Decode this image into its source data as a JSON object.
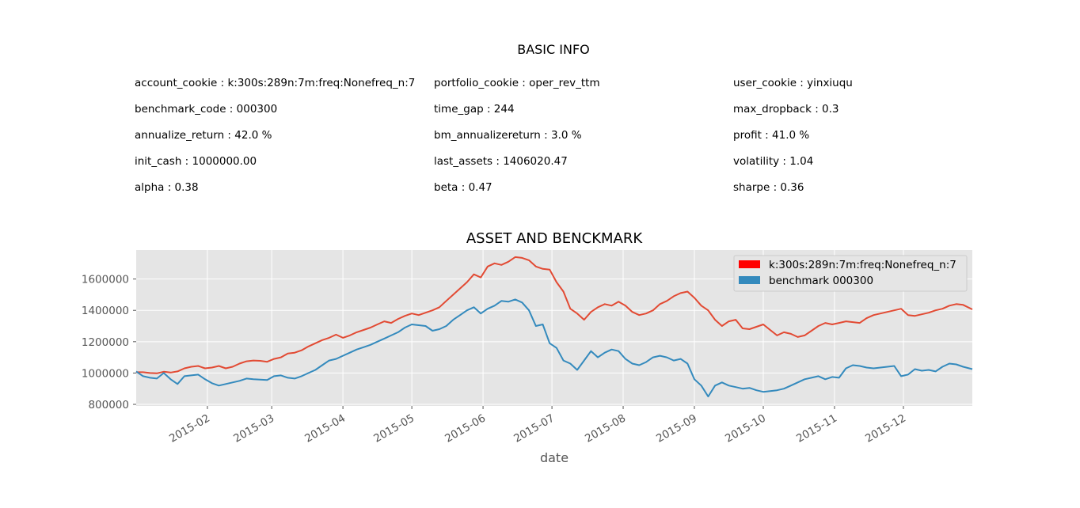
{
  "info": {
    "title": "BASIC INFO",
    "columns": [
      [
        {
          "key": "account_cookie",
          "value": "k:300s:289n:7m:freq:Nonefreq_n:7"
        },
        {
          "key": "benchmark_code",
          "value": "000300"
        },
        {
          "key": "annualize_return",
          "value": "42.0 %"
        },
        {
          "key": "init_cash",
          "value": "1000000.00"
        },
        {
          "key": "alpha",
          "value": "0.38"
        }
      ],
      [
        {
          "key": "portfolio_cookie",
          "value": "oper_rev_ttm"
        },
        {
          "key": "time_gap",
          "value": "244"
        },
        {
          "key": "bm_annualizereturn",
          "value": "3.0 %"
        },
        {
          "key": "last_assets",
          "value": "1406020.47"
        },
        {
          "key": "beta",
          "value": "0.47"
        }
      ],
      [
        {
          "key": "user_cookie",
          "value": "yinxiuqu"
        },
        {
          "key": "max_dropback",
          "value": "0.3"
        },
        {
          "key": "profit",
          "value": "41.0 %"
        },
        {
          "key": "volatility",
          "value": "1.04"
        },
        {
          "key": "sharpe",
          "value": "0.36"
        }
      ]
    ]
  },
  "colors": {
    "strategy": "#E24A33",
    "benchmark": "#348ABD",
    "legend_strategy_patch": "#FF0000",
    "plot_bg": "#E5E5E5",
    "grid": "#FFFFFF"
  },
  "chart_data": {
    "type": "line",
    "title": "ASSET AND BENCKMARK",
    "xlabel": "date",
    "ylabel": "",
    "xlim_day": [
      0,
      364
    ],
    "ylim": [
      790000,
      1785000
    ],
    "x_ticks": [
      {
        "label": "2015-02",
        "day": 31
      },
      {
        "label": "2015-03",
        "day": 59
      },
      {
        "label": "2015-04",
        "day": 90
      },
      {
        "label": "2015-05",
        "day": 120
      },
      {
        "label": "2015-06",
        "day": 151
      },
      {
        "label": "2015-07",
        "day": 181
      },
      {
        "label": "2015-08",
        "day": 212
      },
      {
        "label": "2015-09",
        "day": 243
      },
      {
        "label": "2015-10",
        "day": 273
      },
      {
        "label": "2015-11",
        "day": 304
      },
      {
        "label": "2015-12",
        "day": 334
      }
    ],
    "y_ticks": [
      {
        "label": "800000",
        "value": 800000
      },
      {
        "label": "1000000",
        "value": 1000000
      },
      {
        "label": "1200000",
        "value": 1200000
      },
      {
        "label": "1400000",
        "value": 1400000
      },
      {
        "label": "1600000",
        "value": 1600000
      }
    ],
    "legend_position": "top-right",
    "series": [
      {
        "name": "k:300s:289n:7m:freq:Nonefreq_n:7",
        "color": "#E24A33",
        "points": [
          [
            0,
            1005000
          ],
          [
            3,
            1005000
          ],
          [
            6,
            1000000
          ],
          [
            9,
            998000
          ],
          [
            12,
            1008000
          ],
          [
            15,
            1003000
          ],
          [
            18,
            1010000
          ],
          [
            21,
            1030000
          ],
          [
            24,
            1040000
          ],
          [
            27,
            1045000
          ],
          [
            30,
            1030000
          ],
          [
            33,
            1035000
          ],
          [
            36,
            1045000
          ],
          [
            39,
            1030000
          ],
          [
            42,
            1040000
          ],
          [
            45,
            1060000
          ],
          [
            48,
            1075000
          ],
          [
            51,
            1080000
          ],
          [
            54,
            1078000
          ],
          [
            57,
            1072000
          ],
          [
            60,
            1090000
          ],
          [
            63,
            1100000
          ],
          [
            66,
            1125000
          ],
          [
            69,
            1130000
          ],
          [
            72,
            1145000
          ],
          [
            75,
            1170000
          ],
          [
            78,
            1190000
          ],
          [
            81,
            1210000
          ],
          [
            84,
            1225000
          ],
          [
            87,
            1245000
          ],
          [
            90,
            1225000
          ],
          [
            93,
            1240000
          ],
          [
            96,
            1260000
          ],
          [
            99,
            1275000
          ],
          [
            102,
            1290000
          ],
          [
            105,
            1310000
          ],
          [
            108,
            1330000
          ],
          [
            111,
            1320000
          ],
          [
            114,
            1345000
          ],
          [
            117,
            1365000
          ],
          [
            120,
            1380000
          ],
          [
            123,
            1370000
          ],
          [
            126,
            1385000
          ],
          [
            129,
            1400000
          ],
          [
            132,
            1420000
          ],
          [
            135,
            1460000
          ],
          [
            138,
            1500000
          ],
          [
            141,
            1540000
          ],
          [
            144,
            1580000
          ],
          [
            147,
            1630000
          ],
          [
            150,
            1610000
          ],
          [
            153,
            1680000
          ],
          [
            156,
            1700000
          ],
          [
            159,
            1690000
          ],
          [
            162,
            1710000
          ],
          [
            165,
            1740000
          ],
          [
            168,
            1735000
          ],
          [
            171,
            1720000
          ],
          [
            174,
            1680000
          ],
          [
            177,
            1665000
          ],
          [
            180,
            1660000
          ],
          [
            183,
            1580000
          ],
          [
            186,
            1520000
          ],
          [
            189,
            1410000
          ],
          [
            192,
            1380000
          ],
          [
            195,
            1340000
          ],
          [
            198,
            1390000
          ],
          [
            201,
            1420000
          ],
          [
            204,
            1440000
          ],
          [
            207,
            1430000
          ],
          [
            210,
            1455000
          ],
          [
            213,
            1430000
          ],
          [
            216,
            1390000
          ],
          [
            219,
            1370000
          ],
          [
            222,
            1380000
          ],
          [
            225,
            1400000
          ],
          [
            228,
            1440000
          ],
          [
            231,
            1460000
          ],
          [
            234,
            1490000
          ],
          [
            237,
            1510000
          ],
          [
            240,
            1520000
          ],
          [
            243,
            1480000
          ],
          [
            246,
            1430000
          ],
          [
            249,
            1400000
          ],
          [
            252,
            1340000
          ],
          [
            255,
            1300000
          ],
          [
            258,
            1330000
          ],
          [
            261,
            1340000
          ],
          [
            264,
            1285000
          ],
          [
            267,
            1280000
          ],
          [
            270,
            1295000
          ],
          [
            273,
            1310000
          ],
          [
            276,
            1275000
          ],
          [
            279,
            1240000
          ],
          [
            282,
            1260000
          ],
          [
            285,
            1250000
          ],
          [
            288,
            1230000
          ],
          [
            291,
            1240000
          ],
          [
            294,
            1270000
          ],
          [
            297,
            1300000
          ],
          [
            300,
            1320000
          ],
          [
            303,
            1310000
          ],
          [
            306,
            1320000
          ],
          [
            309,
            1330000
          ],
          [
            312,
            1325000
          ],
          [
            315,
            1320000
          ],
          [
            318,
            1350000
          ],
          [
            321,
            1370000
          ],
          [
            324,
            1380000
          ],
          [
            327,
            1390000
          ],
          [
            330,
            1400000
          ],
          [
            333,
            1410000
          ],
          [
            336,
            1370000
          ],
          [
            339,
            1365000
          ],
          [
            342,
            1375000
          ],
          [
            345,
            1385000
          ],
          [
            348,
            1400000
          ],
          [
            351,
            1410000
          ],
          [
            354,
            1430000
          ],
          [
            357,
            1440000
          ],
          [
            360,
            1435000
          ],
          [
            364,
            1406000
          ]
        ]
      },
      {
        "name": "benchmark 000300",
        "color": "#348ABD",
        "points": [
          [
            0,
            1010000
          ],
          [
            3,
            980000
          ],
          [
            6,
            970000
          ],
          [
            9,
            965000
          ],
          [
            12,
            1000000
          ],
          [
            15,
            960000
          ],
          [
            18,
            930000
          ],
          [
            21,
            980000
          ],
          [
            24,
            985000
          ],
          [
            27,
            990000
          ],
          [
            30,
            960000
          ],
          [
            33,
            935000
          ],
          [
            36,
            920000
          ],
          [
            39,
            930000
          ],
          [
            42,
            940000
          ],
          [
            45,
            950000
          ],
          [
            48,
            965000
          ],
          [
            51,
            960000
          ],
          [
            54,
            958000
          ],
          [
            57,
            955000
          ],
          [
            60,
            980000
          ],
          [
            63,
            985000
          ],
          [
            66,
            970000
          ],
          [
            69,
            965000
          ],
          [
            72,
            980000
          ],
          [
            75,
            1000000
          ],
          [
            78,
            1020000
          ],
          [
            81,
            1050000
          ],
          [
            84,
            1080000
          ],
          [
            87,
            1090000
          ],
          [
            90,
            1110000
          ],
          [
            93,
            1130000
          ],
          [
            96,
            1150000
          ],
          [
            99,
            1165000
          ],
          [
            102,
            1180000
          ],
          [
            105,
            1200000
          ],
          [
            108,
            1220000
          ],
          [
            111,
            1240000
          ],
          [
            114,
            1260000
          ],
          [
            117,
            1290000
          ],
          [
            120,
            1310000
          ],
          [
            123,
            1305000
          ],
          [
            126,
            1300000
          ],
          [
            129,
            1270000
          ],
          [
            132,
            1280000
          ],
          [
            135,
            1300000
          ],
          [
            138,
            1340000
          ],
          [
            141,
            1370000
          ],
          [
            144,
            1400000
          ],
          [
            147,
            1420000
          ],
          [
            150,
            1380000
          ],
          [
            153,
            1410000
          ],
          [
            156,
            1430000
          ],
          [
            159,
            1460000
          ],
          [
            162,
            1455000
          ],
          [
            165,
            1470000
          ],
          [
            168,
            1450000
          ],
          [
            171,
            1400000
          ],
          [
            174,
            1300000
          ],
          [
            177,
            1310000
          ],
          [
            180,
            1190000
          ],
          [
            183,
            1160000
          ],
          [
            186,
            1080000
          ],
          [
            189,
            1060000
          ],
          [
            192,
            1020000
          ],
          [
            195,
            1080000
          ],
          [
            198,
            1140000
          ],
          [
            201,
            1100000
          ],
          [
            204,
            1130000
          ],
          [
            207,
            1150000
          ],
          [
            210,
            1140000
          ],
          [
            213,
            1090000
          ],
          [
            216,
            1060000
          ],
          [
            219,
            1050000
          ],
          [
            222,
            1070000
          ],
          [
            225,
            1100000
          ],
          [
            228,
            1110000
          ],
          [
            231,
            1100000
          ],
          [
            234,
            1080000
          ],
          [
            237,
            1090000
          ],
          [
            240,
            1060000
          ],
          [
            243,
            960000
          ],
          [
            246,
            920000
          ],
          [
            249,
            850000
          ],
          [
            252,
            920000
          ],
          [
            255,
            940000
          ],
          [
            258,
            920000
          ],
          [
            261,
            910000
          ],
          [
            264,
            900000
          ],
          [
            267,
            905000
          ],
          [
            270,
            890000
          ],
          [
            273,
            880000
          ],
          [
            276,
            885000
          ],
          [
            279,
            890000
          ],
          [
            282,
            900000
          ],
          [
            285,
            920000
          ],
          [
            288,
            940000
          ],
          [
            291,
            960000
          ],
          [
            294,
            970000
          ],
          [
            297,
            980000
          ],
          [
            300,
            960000
          ],
          [
            303,
            975000
          ],
          [
            306,
            970000
          ],
          [
            309,
            1030000
          ],
          [
            312,
            1050000
          ],
          [
            315,
            1045000
          ],
          [
            318,
            1035000
          ],
          [
            321,
            1030000
          ],
          [
            324,
            1035000
          ],
          [
            327,
            1040000
          ],
          [
            330,
            1045000
          ],
          [
            333,
            980000
          ],
          [
            336,
            990000
          ],
          [
            339,
            1025000
          ],
          [
            342,
            1015000
          ],
          [
            345,
            1020000
          ],
          [
            348,
            1010000
          ],
          [
            351,
            1040000
          ],
          [
            354,
            1060000
          ],
          [
            357,
            1055000
          ],
          [
            360,
            1040000
          ],
          [
            364,
            1025000
          ]
        ]
      }
    ]
  }
}
